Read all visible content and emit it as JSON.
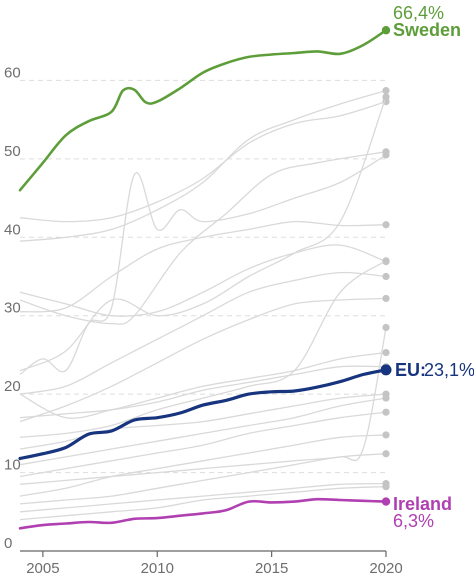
{
  "chart_data": {
    "type": "line",
    "xlim": [
      2004,
      2020
    ],
    "ylim": [
      0,
      70
    ],
    "x_ticks": [
      2005,
      2010,
      2015,
      2020
    ],
    "y_ticks": [
      0,
      10,
      20,
      30,
      40,
      50,
      60
    ],
    "grid": "horizontal-dashed",
    "highlight": [
      {
        "name": "Sweden",
        "value_label": "66,4%",
        "color": "#5e9e3a",
        "points": [
          [
            2004,
            46.0
          ],
          [
            2005,
            49.5
          ],
          [
            2006,
            53.0
          ],
          [
            2007,
            54.8
          ],
          [
            2008,
            56.0
          ],
          [
            2008.5,
            58.7
          ],
          [
            2009,
            58.8
          ],
          [
            2009.5,
            57.2
          ],
          [
            2010,
            57.3
          ],
          [
            2011,
            59.0
          ],
          [
            2012,
            61.0
          ],
          [
            2013,
            62.2
          ],
          [
            2014,
            63.0
          ],
          [
            2015,
            63.3
          ],
          [
            2016,
            63.5
          ],
          [
            2017,
            63.7
          ],
          [
            2018,
            63.4
          ],
          [
            2019,
            64.5
          ],
          [
            2020,
            66.4
          ]
        ]
      },
      {
        "name": "EU:",
        "value_label": "23,1%",
        "color": "#17347e",
        "points": [
          [
            2004,
            11.8
          ],
          [
            2005,
            12.4
          ],
          [
            2006,
            13.2
          ],
          [
            2007,
            14.9
          ],
          [
            2008,
            15.3
          ],
          [
            2009,
            16.7
          ],
          [
            2010,
            17.0
          ],
          [
            2011,
            17.6
          ],
          [
            2012,
            18.6
          ],
          [
            2013,
            19.2
          ],
          [
            2014,
            20.0
          ],
          [
            2015,
            20.3
          ],
          [
            2016,
            20.4
          ],
          [
            2017,
            20.9
          ],
          [
            2018,
            21.6
          ],
          [
            2019,
            22.5
          ],
          [
            2020,
            23.1
          ]
        ]
      },
      {
        "name": "Ireland",
        "value_label": "6,3%",
        "color": "#b03fb1",
        "points": [
          [
            2004,
            2.9
          ],
          [
            2005,
            3.3
          ],
          [
            2006,
            3.5
          ],
          [
            2007,
            3.7
          ],
          [
            2008,
            3.6
          ],
          [
            2009,
            4.1
          ],
          [
            2010,
            4.2
          ],
          [
            2011,
            4.5
          ],
          [
            2012,
            4.8
          ],
          [
            2013,
            5.2
          ],
          [
            2014,
            6.3
          ],
          [
            2015,
            6.2
          ],
          [
            2016,
            6.3
          ],
          [
            2017,
            6.6
          ],
          [
            2018,
            6.5
          ],
          [
            2019,
            6.4
          ],
          [
            2020,
            6.3
          ]
        ]
      }
    ],
    "background_color": "#d9d9d9",
    "end_dot_color": "#c4c4c4",
    "background_series": [
      {
        "points": [
          [
            2004,
            42.5
          ],
          [
            2006,
            42.0
          ],
          [
            2008,
            42.5
          ],
          [
            2010,
            44.5
          ],
          [
            2012,
            47.5
          ],
          [
            2014,
            52.0
          ],
          [
            2016,
            54.5
          ],
          [
            2018,
            55.5
          ],
          [
            2020,
            57.3
          ]
        ]
      },
      {
        "points": [
          [
            2004,
            39.5
          ],
          [
            2006,
            40.0
          ],
          [
            2008,
            41.0
          ],
          [
            2010,
            43.5
          ],
          [
            2012,
            47.0
          ],
          [
            2014,
            52.5
          ],
          [
            2016,
            55.0
          ],
          [
            2018,
            57.0
          ],
          [
            2020,
            58.7
          ]
        ]
      },
      {
        "points": [
          [
            2004,
            32.0
          ],
          [
            2006,
            30.0
          ],
          [
            2008,
            29.0
          ],
          [
            2009,
            30.0
          ],
          [
            2011,
            38.0
          ],
          [
            2013,
            43.0
          ],
          [
            2015,
            48.0
          ],
          [
            2017,
            49.5
          ],
          [
            2020,
            50.9
          ]
        ]
      },
      {
        "points": [
          [
            2004,
            30.5
          ],
          [
            2006,
            31.0
          ],
          [
            2008,
            35.0
          ],
          [
            2010,
            38.5
          ],
          [
            2012,
            40.0
          ],
          [
            2014,
            41.0
          ],
          [
            2016,
            42.0
          ],
          [
            2018,
            41.5
          ],
          [
            2020,
            41.6
          ]
        ]
      },
      {
        "points": [
          [
            2004,
            33.0
          ],
          [
            2006,
            31.5
          ],
          [
            2008,
            30.0
          ],
          [
            2010,
            30.5
          ],
          [
            2012,
            33.0
          ],
          [
            2014,
            36.0
          ],
          [
            2016,
            38.0
          ],
          [
            2018,
            39.0
          ],
          [
            2020,
            36.9
          ]
        ]
      },
      {
        "points": [
          [
            2004,
            22.5
          ],
          [
            2005,
            24.5
          ],
          [
            2006,
            23.0
          ],
          [
            2007,
            29.0
          ],
          [
            2008,
            31.0
          ],
          [
            2009,
            48.0
          ],
          [
            2010,
            41.0
          ],
          [
            2011,
            43.5
          ],
          [
            2012,
            42.0
          ],
          [
            2014,
            43.0
          ],
          [
            2016,
            45.0
          ],
          [
            2018,
            47.0
          ],
          [
            2020,
            50.5
          ]
        ]
      },
      {
        "points": [
          [
            2004,
            23.0
          ],
          [
            2006,
            25.5
          ],
          [
            2008,
            32.0
          ],
          [
            2010,
            30.0
          ],
          [
            2012,
            31.5
          ],
          [
            2014,
            35.0
          ],
          [
            2016,
            38.0
          ],
          [
            2018,
            42.0
          ],
          [
            2020,
            57.9
          ]
        ]
      },
      {
        "points": [
          [
            2004,
            20.0
          ],
          [
            2006,
            21.0
          ],
          [
            2008,
            24.0
          ],
          [
            2010,
            27.0
          ],
          [
            2012,
            30.0
          ],
          [
            2014,
            33.0
          ],
          [
            2016,
            34.5
          ],
          [
            2018,
            35.5
          ],
          [
            2020,
            35.0
          ]
        ]
      },
      {
        "points": [
          [
            2004,
            16.5
          ],
          [
            2006,
            18.5
          ],
          [
            2008,
            21.0
          ],
          [
            2010,
            24.0
          ],
          [
            2012,
            27.0
          ],
          [
            2014,
            29.5
          ],
          [
            2016,
            31.5
          ],
          [
            2018,
            32.0
          ],
          [
            2020,
            32.2
          ]
        ]
      },
      {
        "points": [
          [
            2004,
            20.0
          ],
          [
            2006,
            17.0
          ],
          [
            2008,
            18.0
          ],
          [
            2010,
            19.5
          ],
          [
            2012,
            21.0
          ],
          [
            2014,
            22.0
          ],
          [
            2016,
            23.0
          ],
          [
            2018,
            24.5
          ],
          [
            2020,
            25.3
          ]
        ]
      },
      {
        "points": [
          [
            2004,
            17.0
          ],
          [
            2006,
            17.5
          ],
          [
            2008,
            18.0
          ],
          [
            2010,
            19.0
          ],
          [
            2012,
            20.5
          ],
          [
            2014,
            21.5
          ],
          [
            2016,
            22.5
          ],
          [
            2018,
            23.5
          ],
          [
            2020,
            23.5
          ]
        ]
      },
      {
        "points": [
          [
            2004,
            13.0
          ],
          [
            2006,
            14.0
          ],
          [
            2008,
            15.5
          ],
          [
            2010,
            16.0
          ],
          [
            2012,
            16.5
          ],
          [
            2014,
            17.5
          ],
          [
            2016,
            18.5
          ],
          [
            2018,
            19.5
          ],
          [
            2020,
            20.0
          ]
        ]
      },
      {
        "points": [
          [
            2004,
            11.0
          ],
          [
            2006,
            12.0
          ],
          [
            2008,
            13.0
          ],
          [
            2010,
            14.0
          ],
          [
            2012,
            15.0
          ],
          [
            2014,
            16.0
          ],
          [
            2016,
            17.0
          ],
          [
            2018,
            18.5
          ],
          [
            2020,
            19.5
          ]
        ]
      },
      {
        "points": [
          [
            2004,
            9.5
          ],
          [
            2006,
            10.5
          ],
          [
            2008,
            11.5
          ],
          [
            2010,
            12.5
          ],
          [
            2012,
            13.5
          ],
          [
            2014,
            15.0
          ],
          [
            2016,
            16.0
          ],
          [
            2018,
            17.0
          ],
          [
            2020,
            17.7
          ]
        ]
      },
      {
        "points": [
          [
            2004,
            7.0
          ],
          [
            2006,
            8.0
          ],
          [
            2008,
            9.5
          ],
          [
            2010,
            10.5
          ],
          [
            2012,
            11.5
          ],
          [
            2014,
            12.5
          ],
          [
            2016,
            13.5
          ],
          [
            2018,
            14.5
          ],
          [
            2020,
            14.8
          ]
        ]
      },
      {
        "points": [
          [
            2004,
            6.0
          ],
          [
            2006,
            6.5
          ],
          [
            2008,
            7.0
          ],
          [
            2010,
            8.0
          ],
          [
            2012,
            9.0
          ],
          [
            2014,
            10.0
          ],
          [
            2016,
            11.0
          ],
          [
            2018,
            12.0
          ],
          [
            2020,
            12.4
          ]
        ]
      },
      {
        "points": [
          [
            2004,
            5.0
          ],
          [
            2006,
            5.5
          ],
          [
            2008,
            6.0
          ],
          [
            2010,
            6.5
          ],
          [
            2012,
            7.0
          ],
          [
            2014,
            7.5
          ],
          [
            2016,
            8.0
          ],
          [
            2018,
            8.5
          ],
          [
            2020,
            8.6
          ]
        ]
      },
      {
        "points": [
          [
            2004,
            4.0
          ],
          [
            2006,
            4.5
          ],
          [
            2008,
            5.0
          ],
          [
            2010,
            5.5
          ],
          [
            2012,
            6.5
          ],
          [
            2014,
            7.0
          ],
          [
            2016,
            7.5
          ],
          [
            2018,
            8.0
          ],
          [
            2020,
            8.2
          ]
        ]
      },
      {
        "points": [
          [
            2004,
            8.5
          ],
          [
            2006,
            9.0
          ],
          [
            2008,
            9.5
          ],
          [
            2010,
            10.0
          ],
          [
            2012,
            10.5
          ],
          [
            2014,
            11.0
          ],
          [
            2016,
            11.5
          ],
          [
            2018,
            12.0
          ],
          [
            2019,
            13.0
          ],
          [
            2020,
            28.5
          ]
        ]
      },
      {
        "points": [
          [
            2004,
            14.5
          ],
          [
            2006,
            15.0
          ],
          [
            2008,
            16.0
          ],
          [
            2010,
            18.0
          ],
          [
            2012,
            19.5
          ],
          [
            2014,
            21.0
          ],
          [
            2016,
            23.0
          ],
          [
            2018,
            33.0
          ],
          [
            2020,
            37.0
          ]
        ]
      }
    ]
  }
}
